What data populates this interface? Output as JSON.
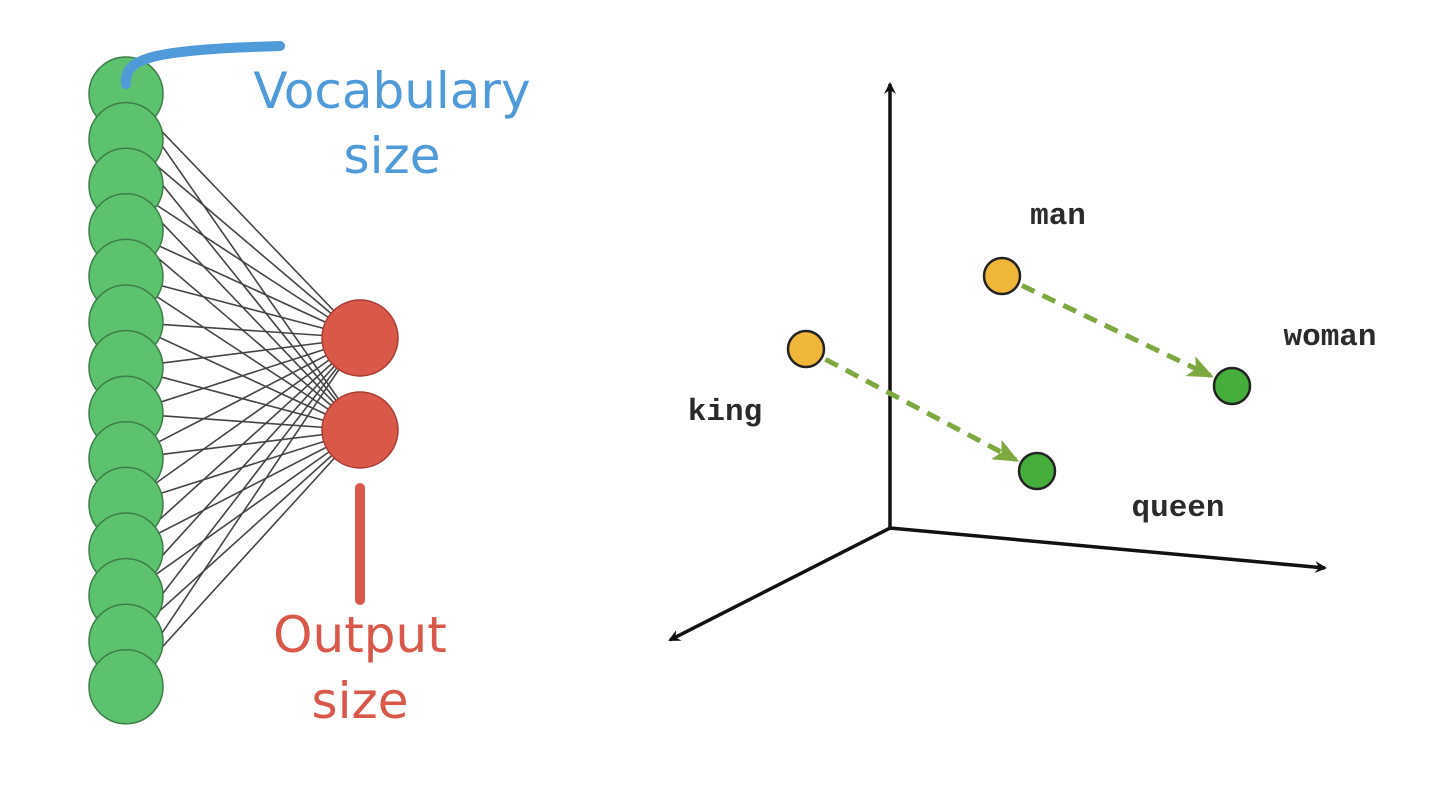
{
  "network": {
    "input_node_count": 14,
    "output_node_count": 2,
    "colors": {
      "input_fill": "#5dc26d",
      "input_stroke": "#3b7f47",
      "output_fill": "#d9584a",
      "output_stroke": "#a63c32",
      "connection": "#444444"
    },
    "vocab_label_lines": [
      "Vocabulary",
      "size"
    ],
    "vocab_color": "#4f9ad8",
    "output_label_lines": [
      "Output",
      "size"
    ],
    "output_color": "#d9584a"
  },
  "embedding": {
    "words": [
      {
        "id": "man",
        "label": "man",
        "color": "#f0b63a"
      },
      {
        "id": "woman",
        "label": "woman",
        "color": "#45ad3a"
      },
      {
        "id": "king",
        "label": "king",
        "color": "#f0b63a"
      },
      {
        "id": "queen",
        "label": "queen",
        "color": "#45ad3a"
      }
    ],
    "arrows": [
      {
        "from": "man",
        "to": "woman"
      },
      {
        "from": "king",
        "to": "queen"
      }
    ],
    "arrow_color": "#7ea940",
    "axis_color": "#111111"
  }
}
